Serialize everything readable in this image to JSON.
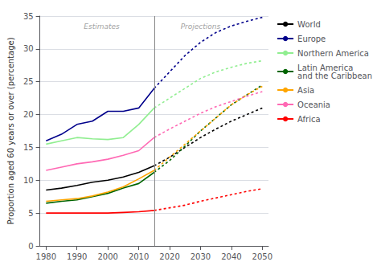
{
  "chart_data": {
    "type": "line",
    "ylabel": "Proportion aged 60 years or over (percentage)",
    "x": [
      1980,
      1985,
      1990,
      1995,
      2000,
      2005,
      2010,
      2015,
      2020,
      2025,
      2030,
      2035,
      2040,
      2045,
      2050
    ],
    "xlim": [
      1978,
      2052
    ],
    "ylim": [
      0,
      35
    ],
    "xticks": [
      1980,
      1990,
      2000,
      2010,
      2020,
      2030,
      2040,
      2050
    ],
    "yticks": [
      0,
      5,
      10,
      15,
      20,
      25,
      30,
      35
    ],
    "grid": true,
    "legend": "right",
    "divider_x": 2015,
    "annotations": [
      {
        "text": "Estimates",
        "x": 1998,
        "y": 34.2
      },
      {
        "text": "Projections",
        "x": 2030,
        "y": 34.2
      }
    ],
    "series": [
      {
        "name": "World",
        "color": "#000000",
        "values": [
          8.5,
          8.8,
          9.2,
          9.7,
          10.0,
          10.5,
          11.2,
          12.2,
          13.5,
          15.0,
          16.5,
          17.8,
          19.0,
          20.0,
          21.0
        ]
      },
      {
        "name": "Europe",
        "color": "#00008B",
        "values": [
          16.0,
          17.0,
          18.5,
          19.0,
          20.5,
          20.5,
          21.0,
          24.0,
          26.5,
          29.0,
          31.0,
          32.5,
          33.5,
          34.2,
          34.8
        ]
      },
      {
        "name": "Northern America",
        "color": "#90EE90",
        "values": [
          15.5,
          16.0,
          16.5,
          16.3,
          16.2,
          16.5,
          18.5,
          21.0,
          22.5,
          24.0,
          25.5,
          26.5,
          27.2,
          27.8,
          28.2
        ]
      },
      {
        "name": "Latin America\nand the Caribbean",
        "color": "#006400",
        "values": [
          6.5,
          6.8,
          7.0,
          7.5,
          8.0,
          8.8,
          9.5,
          11.2,
          13.0,
          15.2,
          17.5,
          19.5,
          21.5,
          23.0,
          24.5
        ]
      },
      {
        "name": "Asia",
        "color": "#FFA500",
        "values": [
          6.8,
          7.0,
          7.2,
          7.6,
          8.2,
          9.0,
          10.2,
          11.5,
          13.5,
          15.5,
          17.5,
          19.5,
          21.5,
          23.0,
          24.3
        ]
      },
      {
        "name": "Oceania",
        "color": "#FF69B4",
        "values": [
          11.5,
          12.0,
          12.5,
          12.8,
          13.2,
          13.8,
          14.5,
          16.5,
          17.8,
          19.0,
          20.2,
          21.2,
          22.0,
          22.8,
          23.5
        ]
      },
      {
        "name": "Africa",
        "color": "#FF0000",
        "values": [
          5.0,
          5.0,
          5.0,
          5.0,
          5.0,
          5.1,
          5.2,
          5.4,
          5.8,
          6.2,
          6.8,
          7.3,
          7.8,
          8.3,
          8.7
        ]
      }
    ]
  }
}
